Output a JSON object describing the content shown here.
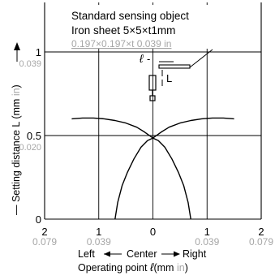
{
  "colors": {
    "primary": "#000000",
    "secondary_units": "#a6a6a6",
    "background": "#ffffff"
  },
  "chart_data": {
    "type": "line",
    "title_lines": [
      "Standard sensing object",
      "Iron sheet 5×5×t1mm",
      "0.197×0.197×t 0.039 in"
    ],
    "ylabel_mm": "— Setting distance L (mm ",
    "ylabel_in": "in",
    "ylabel_close": ")",
    "xlabel_direction": {
      "left": "Left",
      "center": "Center",
      "right": "Right"
    },
    "xlabel_prefix": "Operating point ",
    "xlabel_symbol": "ℓ",
    "xlabel_units_mm": "(mm ",
    "xlabel_units_in": "in",
    "xlabel_units_close": ")",
    "diagram_labels": {
      "ell": "ℓ",
      "dash": "-",
      "L": "L"
    },
    "x_ticks": [
      {
        "value": -2,
        "mm": "2",
        "in": "0.079"
      },
      {
        "value": -1,
        "mm": "1",
        "in": "0.039"
      },
      {
        "value": 0,
        "mm": "0",
        "in": ""
      },
      {
        "value": 1,
        "mm": "1",
        "in": "0.039"
      },
      {
        "value": 2,
        "mm": "2",
        "in": "0.079"
      }
    ],
    "y_ticks": [
      {
        "value": 0,
        "mm": "0",
        "in": ""
      },
      {
        "value": 0.5,
        "mm": "0.5",
        "in": "0.020"
      },
      {
        "value": 1,
        "mm": "1",
        "in": "0.039"
      }
    ],
    "xlim": [
      -2,
      2
    ],
    "ylim": [
      0,
      1
    ],
    "grid": true,
    "series": [
      {
        "x": [
          -1.5,
          -1.3,
          -1.1,
          -0.9,
          -0.7,
          -0.5,
          -0.3,
          -0.15,
          0,
          0.15,
          0.3,
          0.5,
          0.7,
          0.9,
          1.1,
          1.3,
          1.5
        ],
        "y": [
          0.6,
          0.605,
          0.605,
          0.6,
          0.59,
          0.575,
          0.55,
          0.52,
          0.485,
          0.52,
          0.55,
          0.575,
          0.59,
          0.6,
          0.605,
          0.605,
          0.6
        ]
      },
      {
        "x": [
          -0.7,
          -0.65,
          -0.57,
          -0.47,
          -0.35,
          -0.22,
          -0.1,
          0,
          0.1,
          0.22,
          0.35,
          0.47,
          0.57,
          0.65,
          0.7
        ],
        "y": [
          0,
          0.1,
          0.2,
          0.28,
          0.36,
          0.43,
          0.47,
          0.485,
          0.47,
          0.43,
          0.36,
          0.28,
          0.2,
          0.1,
          0
        ]
      }
    ]
  }
}
